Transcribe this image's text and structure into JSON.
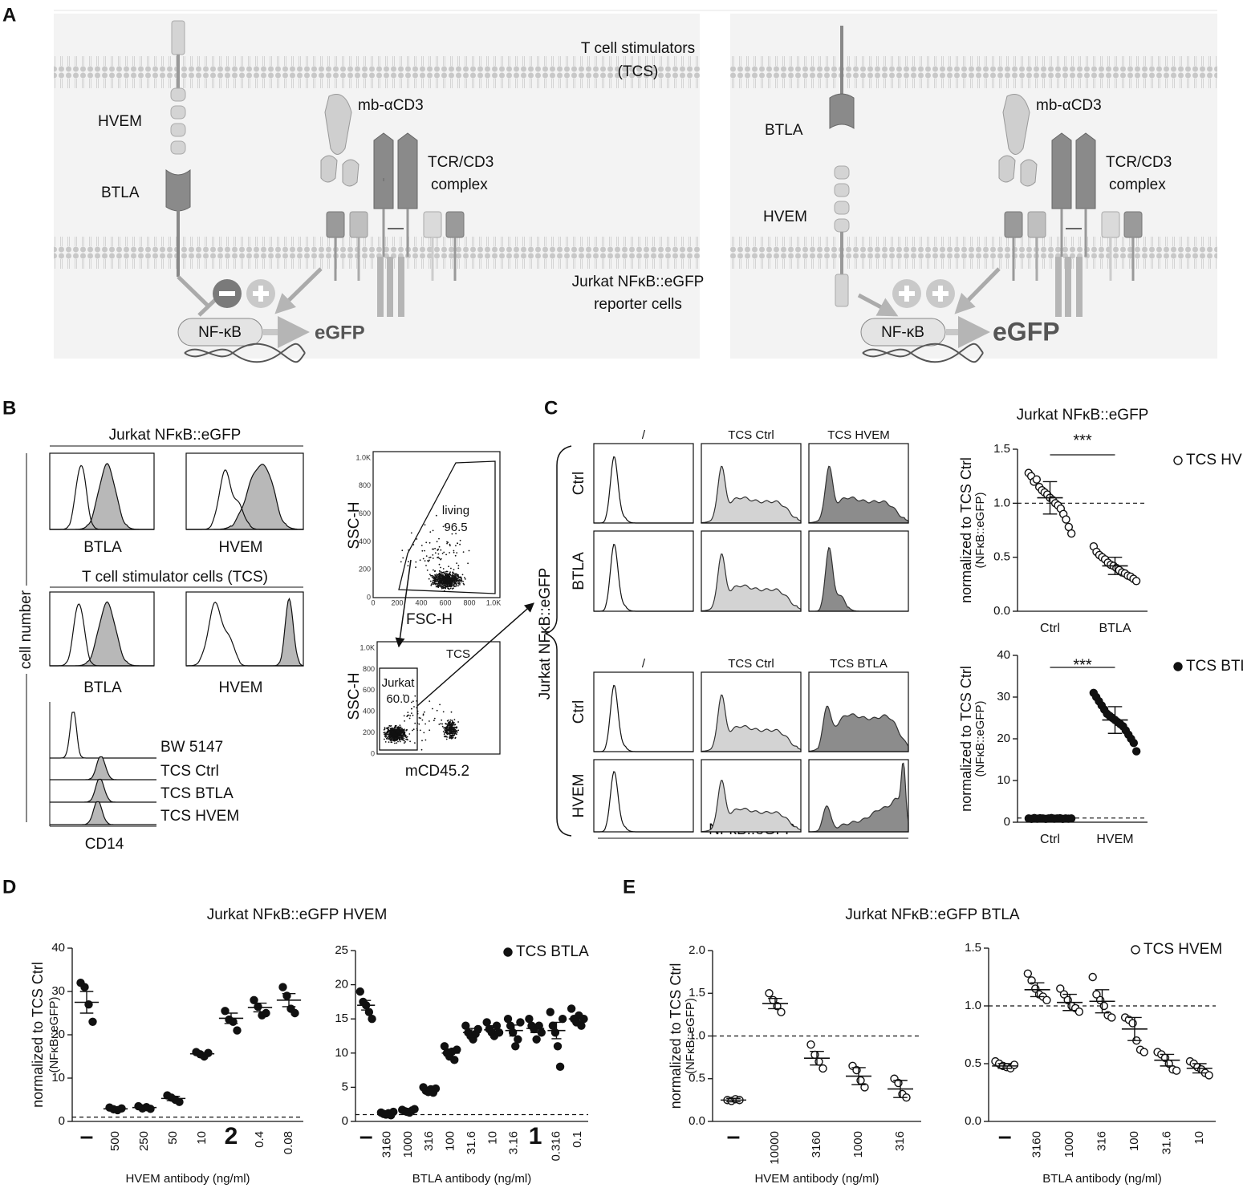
{
  "panels": {
    "A": "A",
    "B": "B",
    "C": "C",
    "D": "D",
    "E": "E",
    "D_title": "Jurkat NFκB::eGFP HVEM",
    "E_title": "Jurkat NFκB::eGFP BTLA"
  },
  "diagram": {
    "tcs": [
      "T cell stimulators",
      "(TCS)"
    ],
    "jurkat": [
      "Jurkat NFκB::eGFP",
      "reporter cells"
    ],
    "left": {
      "hvem": "HVEM",
      "btla": "BTLA",
      "antibody": "mb-αCD3",
      "tcr": [
        "TCR/CD3",
        "complex"
      ],
      "nfkb": "NF-κB",
      "egfp": "eGFP"
    },
    "right": {
      "hvem": "HVEM",
      "btla": "BTLA",
      "antibody": "mb-αCD3",
      "tcr": [
        "TCR/CD3",
        "complex"
      ],
      "nfkb": "NF-κB",
      "egfp": "eGFP"
    }
  },
  "flow": {
    "jurkat_title": "Jurkat NFκB::eGFP",
    "tcs_title": "T cell stimulator cells (TCS)",
    "hist_labels": [
      "BTLA",
      "HVEM",
      "BTLA",
      "HVEM"
    ],
    "cell_number": "cell number",
    "cd14_labels": [
      "BW 5147",
      "TCS Ctrl",
      "TCS BTLA",
      "TCS HVEM"
    ],
    "cd14": "CD14",
    "scatter_ticks": [
      "0",
      "200",
      "400",
      "600",
      "800",
      "1.0K"
    ],
    "gate1": {
      "ylabel": "SSC-H",
      "xlabel": "FSC-H",
      "gate": "living",
      "percent": "96.5"
    },
    "gate2": {
      "ylabel": "SSC-H",
      "xlabel": "mCD45.2",
      "gate": "Jurkat",
      "percent": "60.0",
      "other": "TCS"
    },
    "c_cols_top": [
      "/",
      "TCS Ctrl",
      "TCS HVEM"
    ],
    "c_cols_bottom": [
      "/",
      "TCS Ctrl",
      "TCS BTLA"
    ],
    "c_rows": [
      "Ctrl",
      "BTLA",
      "Ctrl",
      "HVEM"
    ],
    "c_ylabel": "Jurkat NFκB::eGFP",
    "c_xlabel": "NFκB::eGFP"
  },
  "chart_data": [
    {
      "type": "strip",
      "title": "Jurkat NFκB::eGFP",
      "ylabel": [
        "normalized to TCS Ctrl",
        "(NFκB::eGFP)"
      ],
      "categories": [
        "Ctrl",
        "BTLA"
      ],
      "annotation": "***",
      "legend": "right",
      "series": [
        {
          "name": "TCS HVEM",
          "color": "#111111",
          "marker": "open",
          "values": [
            [
              1.28,
              1.25,
              1.2,
              1.22,
              1.15,
              1.12,
              1.1,
              1.08,
              1.05,
              1.03,
              1.0,
              0.98,
              0.95,
              0.9,
              0.85,
              0.78,
              0.72
            ],
            [
              0.6,
              0.55,
              0.52,
              0.5,
              0.48,
              0.45,
              0.43,
              0.42,
              0.4,
              0.38,
              0.36,
              0.35,
              0.33,
              0.32,
              0.3,
              0.28
            ]
          ],
          "means": [
            1.05,
            0.42
          ],
          "errors": [
            0.15,
            0.08
          ]
        }
      ],
      "ylim": [
        0,
        1.5
      ],
      "yticks": [
        {
          "value": 0,
          "label": "0.0"
        },
        0.5,
        {
          "value": 1,
          "label": "1.0"
        },
        1.5
      ],
      "reference_line": 1
    },
    {
      "type": "strip",
      "ylabel": [
        "normalized to TCS Ctrl",
        "(NFκB::eGFP)"
      ],
      "categories": [
        "Ctrl",
        "HVEM"
      ],
      "annotation": "***",
      "legend": "right",
      "series": [
        {
          "name": "TCS BTLA",
          "color": "#111111",
          "marker": "filled",
          "values": [
            [
              0.9,
              0.8,
              1.0,
              0.85,
              0.95,
              0.9,
              0.8,
              0.9,
              1.0,
              0.85,
              0.9,
              0.95,
              0.8,
              0.9,
              0.85,
              0.9
            ],
            [
              31,
              30,
              29,
              28,
              27,
              26,
              25.5,
              25,
              24.5,
              24,
              23.5,
              23,
              22,
              21,
              20,
              19,
              17
            ]
          ],
          "means": [
            0.9,
            24.5
          ],
          "errors": [
            0.1,
            3.2
          ]
        }
      ],
      "ylim": [
        0,
        40
      ],
      "yticks": [
        0,
        10,
        20,
        30,
        40
      ],
      "reference_line": 1
    },
    {
      "type": "strip",
      "ylabel": [
        "normalized to TCS Ctrl",
        "(NFκB::eGFP)"
      ],
      "xlabel": "HVEM antibody (ng/ml)",
      "categories": [
        "–",
        "500",
        "250",
        "50",
        "10",
        "2",
        "0.4",
        "0.08"
      ],
      "series": [
        {
          "color": "#111111",
          "marker": "filled",
          "values": [
            [
              32,
              31,
              27,
              23
            ],
            [
              3.2,
              2.8,
              2.6,
              3.0
            ],
            [
              3.5,
              3.0,
              3.3,
              2.9
            ],
            [
              6,
              5.5,
              5,
              4.5
            ],
            [
              16,
              15.5,
              15,
              15.8
            ],
            [
              25.5,
              23.5,
              23,
              21
            ],
            [
              28,
              26.5,
              24.5,
              25
            ],
            [
              31,
              29,
              26,
              25
            ]
          ],
          "means": [
            27.5,
            2.9,
            3.2,
            5.3,
            15.6,
            23.8,
            26.3,
            28
          ],
          "errors": [
            2.5,
            0.4,
            0.4,
            0.5,
            0.3,
            1.2,
            1.0,
            1.5
          ]
        }
      ],
      "ylim": [
        0,
        40
      ],
      "yticks": [
        0,
        10,
        20,
        30,
        40
      ],
      "reference_line": 1
    },
    {
      "type": "strip",
      "xlabel": "BTLA antibody (ng/ml)",
      "legend": "upper right",
      "categories": [
        "–",
        "3160",
        "1000",
        "316",
        "100",
        "31.6",
        "10",
        "3.16",
        "1",
        "0.316",
        "0.1"
      ],
      "series": [
        {
          "name": "TCS BTLA",
          "color": "#111111",
          "marker": "filled",
          "values": [
            [
              19,
              17.5,
              17,
              16,
              15
            ],
            [
              1.3,
              1.1,
              1.0,
              1.2,
              0.9,
              1.4
            ],
            [
              1.7,
              1.5,
              1.4,
              1.3,
              1.6,
              1.8
            ],
            [
              5,
              4.5,
              4.3,
              4.7,
              4.2,
              4.8
            ],
            [
              11,
              10,
              9.5,
              10.2,
              9,
              10.5
            ],
            [
              14,
              13,
              12.5,
              12,
              12.8,
              13.5
            ],
            [
              14.5,
              13.5,
              13,
              12.5,
              14,
              13
            ],
            [
              15,
              14,
              13,
              11,
              12,
              14.5
            ],
            [
              15,
              14,
              13.5,
              12,
              14,
              13
            ],
            [
              16,
              14,
              13,
              11,
              8,
              15
            ],
            [
              16.5,
              15,
              14.5,
              15.5,
              14,
              15
            ]
          ],
          "means": [
            17,
            1.2,
            1.5,
            4.6,
            10,
            13,
            13.4,
            13.3,
            13.6,
            13.3,
            15
          ],
          "errors": [
            0.7,
            0.2,
            0.2,
            0.3,
            0.6,
            0.6,
            0.6,
            0.8,
            0.6,
            1.2,
            0.4
          ]
        }
      ],
      "ylim": [
        0,
        25
      ],
      "yticks": [
        0,
        5,
        10,
        15,
        20,
        25
      ],
      "reference_line": 1
    },
    {
      "type": "strip",
      "ylabel": [
        "normalized to TCS Ctrl",
        "(NFκB::eGFP)"
      ],
      "xlabel": "HVEM antibody (ng/ml)",
      "categories": [
        "–",
        "10000",
        "3160",
        "1000",
        "316"
      ],
      "series": [
        {
          "color": "#111111",
          "marker": "open",
          "values": [
            [
              0.25,
              0.24,
              0.26,
              0.25
            ],
            [
              1.5,
              1.42,
              1.35,
              1.28
            ],
            [
              0.9,
              0.78,
              0.7,
              0.62
            ],
            [
              0.65,
              0.6,
              0.48,
              0.4
            ],
            [
              0.5,
              0.45,
              0.32,
              0.28
            ]
          ],
          "means": [
            0.25,
            1.38,
            0.74,
            0.53,
            0.38
          ],
          "errors": [
            0.02,
            0.06,
            0.08,
            0.1,
            0.1
          ]
        }
      ],
      "ylim": [
        0,
        2
      ],
      "yticks": [
        {
          "value": 0,
          "label": "0.0"
        },
        0.5,
        {
          "value": 1,
          "label": "1.0"
        },
        1.5,
        {
          "value": 2,
          "label": "2.0"
        }
      ],
      "reference_line": 1
    },
    {
      "type": "strip",
      "xlabel": "BTLA antibody (ng/ml)",
      "legend": "upper right",
      "categories": [
        "–",
        "3160",
        "1000",
        "316",
        "100",
        "31.6",
        "10"
      ],
      "series": [
        {
          "name": "TCS HVEM",
          "color": "#111111",
          "marker": "open",
          "values": [
            [
              0.52,
              0.5,
              0.48,
              0.47,
              0.46,
              0.49
            ],
            [
              1.28,
              1.22,
              1.15,
              1.1,
              1.08,
              1.05
            ],
            [
              1.15,
              1.1,
              1.05,
              1.0,
              0.98,
              0.95
            ],
            [
              1.25,
              1.1,
              1.05,
              1.0,
              0.92,
              0.9
            ],
            [
              0.9,
              0.88,
              0.85,
              0.7,
              0.62,
              0.6
            ],
            [
              0.6,
              0.58,
              0.55,
              0.5,
              0.45,
              0.44
            ],
            [
              0.52,
              0.5,
              0.47,
              0.45,
              0.42,
              0.4
            ]
          ],
          "means": [
            0.48,
            1.14,
            1.03,
            1.04,
            0.8,
            0.53,
            0.46
          ],
          "errors": [
            0.02,
            0.06,
            0.07,
            0.1,
            0.1,
            0.05,
            0.04
          ]
        }
      ],
      "ylim": [
        0,
        1.5
      ],
      "yticks": [
        {
          "value": 0,
          "label": "0.0"
        },
        0.5,
        {
          "value": 1,
          "label": "1.0"
        },
        1.5
      ],
      "reference_line": 1
    }
  ]
}
